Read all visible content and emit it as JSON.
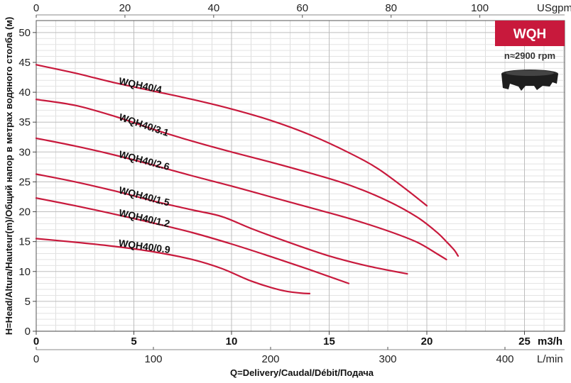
{
  "chart_data": {
    "type": "line",
    "badge": {
      "text": "WQH",
      "color": "#c8193c"
    },
    "speed_label": "n≈2900 rpm",
    "title": "",
    "xlabel": "Q=Delivery/Caudal/Débit/Подача",
    "ylabel": "H=Head/Altura/Hauteur(m)/Общий напор в метрах водяного столба (м)",
    "x_unit": "m3/h",
    "x_unit_lpm": "L/min",
    "x_unit_usgpm": "USgpm",
    "xlim": [
      0,
      27
    ],
    "ylim": [
      0,
      52
    ],
    "x_ticks": [
      "0",
      "5",
      "10",
      "15",
      "20",
      "25"
    ],
    "y_ticks": [
      "0",
      "5",
      "10",
      "15",
      "20",
      "25",
      "30",
      "35",
      "40",
      "45",
      "50"
    ],
    "lpm_ticks": [
      "0",
      "100",
      "200",
      "300",
      "400"
    ],
    "usgpm_ticks": [
      "0",
      "20",
      "40",
      "60",
      "80",
      "100"
    ],
    "grid": true,
    "curve_color": "#c8193c",
    "series": [
      {
        "name": "WQH40/4",
        "x": [
          0,
          2,
          4,
          6,
          8,
          10,
          12,
          14,
          16,
          17.5,
          19,
          20
        ],
        "y": [
          44.6,
          43.2,
          41.6,
          40.2,
          38.8,
          37.2,
          35.3,
          32.9,
          29.9,
          27.2,
          23.6,
          21.0
        ]
      },
      {
        "name": "WQH40/3.1",
        "x": [
          0,
          2,
          4,
          6,
          8,
          10,
          12,
          14,
          16,
          18,
          19.5,
          20.5,
          21,
          21.4,
          21.6
        ],
        "y": [
          38.8,
          37.8,
          36.0,
          33.8,
          31.8,
          30.0,
          28.3,
          26.5,
          24.5,
          21.8,
          19.1,
          16.6,
          15.0,
          13.6,
          12.6
        ]
      },
      {
        "name": "WQH40/2.6",
        "x": [
          0,
          2,
          4,
          6,
          8,
          10,
          12,
          14,
          16,
          18,
          19.5,
          20.5,
          21
        ],
        "y": [
          32.3,
          31.0,
          29.5,
          27.8,
          26.0,
          24.3,
          22.5,
          20.7,
          18.9,
          16.8,
          14.9,
          13.0,
          12.0
        ]
      },
      {
        "name": "WQH40/1.5",
        "x": [
          0,
          2,
          4,
          6,
          8,
          9.5,
          11,
          13,
          15,
          17,
          19
        ],
        "y": [
          26.3,
          25.0,
          23.5,
          21.8,
          20.3,
          19.2,
          17.2,
          14.8,
          12.6,
          10.9,
          9.6
        ]
      },
      {
        "name": "WQH40/1.2",
        "x": [
          0,
          2,
          4,
          6,
          8,
          10,
          12,
          14,
          16
        ],
        "y": [
          22.3,
          21.0,
          19.6,
          18.1,
          16.5,
          14.6,
          12.5,
          10.3,
          8.0
        ]
      },
      {
        "name": "WQH40/0.9",
        "x": [
          0,
          2,
          4,
          6,
          8,
          9.5,
          11,
          12.5,
          13.5,
          14
        ],
        "y": [
          15.5,
          14.9,
          14.2,
          13.3,
          12.0,
          10.5,
          8.4,
          6.9,
          6.4,
          6.3
        ]
      }
    ]
  }
}
